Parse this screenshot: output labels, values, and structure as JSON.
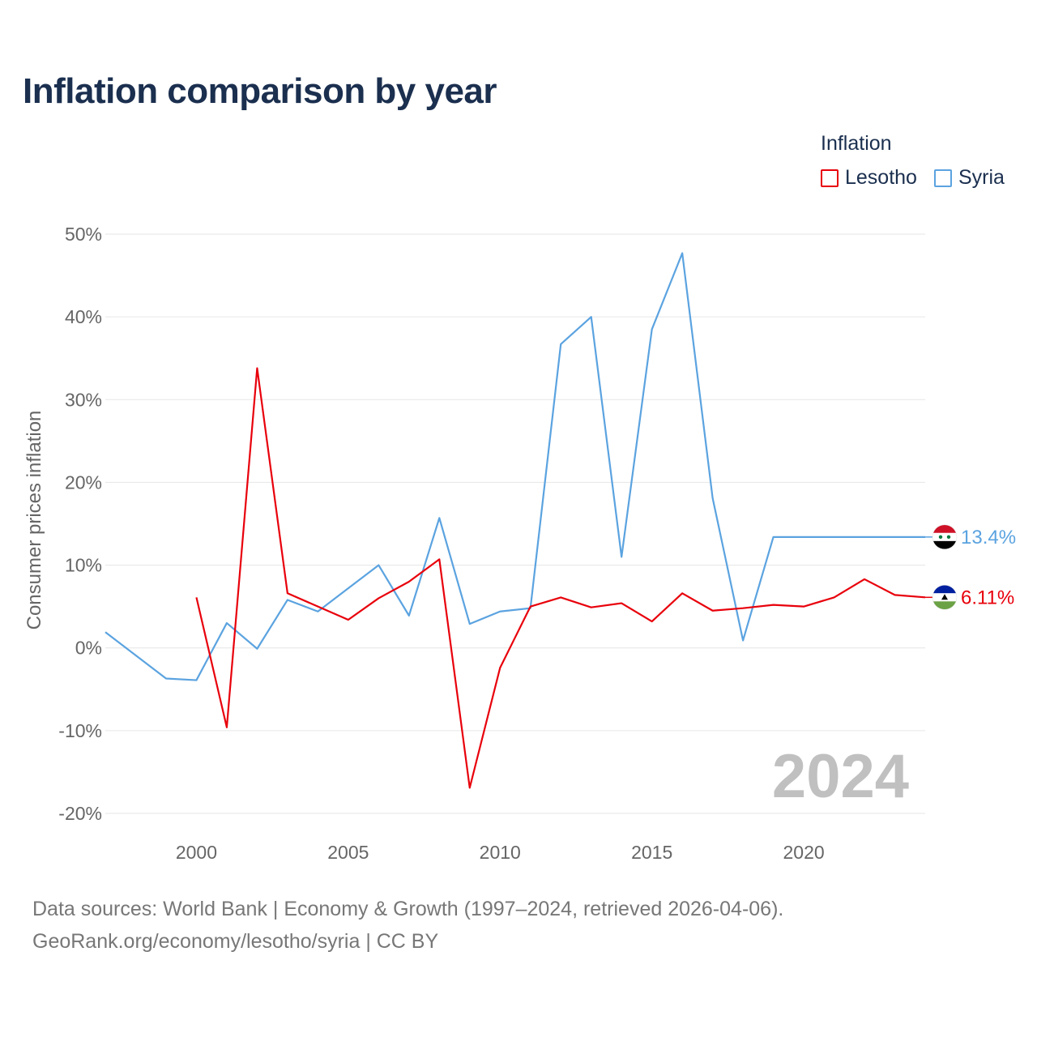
{
  "header": {
    "title": "Inflation comparison by year"
  },
  "legend": {
    "title": "Inflation",
    "items": [
      {
        "label": "Lesotho",
        "color": "#e8000b"
      },
      {
        "label": "Syria",
        "color": "#5ba3e0"
      }
    ]
  },
  "watermark_year": "2024",
  "footer": {
    "line1": "Data sources: World Bank | Economy & Growth (1997–2024, retrieved 2026-04-06).",
    "line2": "GeoRank.org/economy/lesotho/syria | CC BY"
  },
  "chart_data": {
    "type": "line",
    "title": "Inflation comparison by year",
    "xlabel": "",
    "ylabel": "Consumer prices inflation",
    "xlim": [
      1997,
      2024
    ],
    "ylim": [
      -20,
      50
    ],
    "x_ticks": [
      2000,
      2005,
      2010,
      2015,
      2020
    ],
    "y_ticks": [
      -20,
      -10,
      0,
      10,
      20,
      30,
      40,
      50
    ],
    "y_tick_labels": [
      "-20%",
      "-10%",
      "0%",
      "10%",
      "20%",
      "30%",
      "40%",
      "50%"
    ],
    "grid": true,
    "legend": "top-right",
    "series": [
      {
        "name": "Syria",
        "color": "#5ba3e0",
        "end_label": "13.4%",
        "flag": "syria-flag-icon",
        "x": [
          1997,
          1998,
          1999,
          2000,
          2001,
          2002,
          2003,
          2004,
          2005,
          2006,
          2007,
          2008,
          2009,
          2010,
          2011,
          2012,
          2013,
          2014,
          2015,
          2016,
          2017,
          2018,
          2019,
          2020,
          2021,
          2022,
          2023,
          2024
        ],
        "values": [
          1.9,
          -0.9,
          -3.7,
          -3.9,
          3.0,
          -0.1,
          5.8,
          4.4,
          7.2,
          10.0,
          3.9,
          15.7,
          2.9,
          4.4,
          4.8,
          36.7,
          40.0,
          11.0,
          38.5,
          47.7,
          18.1,
          0.9,
          13.4,
          13.4,
          13.4,
          13.4,
          13.4,
          13.4
        ]
      },
      {
        "name": "Lesotho",
        "color": "#e8000b",
        "end_label": "6.11%",
        "flag": "lesotho-flag-icon",
        "x": [
          2000,
          2001,
          2002,
          2003,
          2004,
          2005,
          2006,
          2007,
          2008,
          2009,
          2010,
          2011,
          2012,
          2013,
          2014,
          2015,
          2016,
          2017,
          2018,
          2019,
          2020,
          2021,
          2022,
          2023,
          2024
        ],
        "values": [
          6.1,
          -9.6,
          33.8,
          6.6,
          5.0,
          3.4,
          6.0,
          8.0,
          10.7,
          -16.9,
          -2.4,
          5.0,
          6.1,
          4.9,
          5.4,
          3.2,
          6.6,
          4.5,
          4.8,
          5.2,
          5.0,
          6.1,
          8.3,
          6.4,
          6.11
        ]
      }
    ]
  }
}
